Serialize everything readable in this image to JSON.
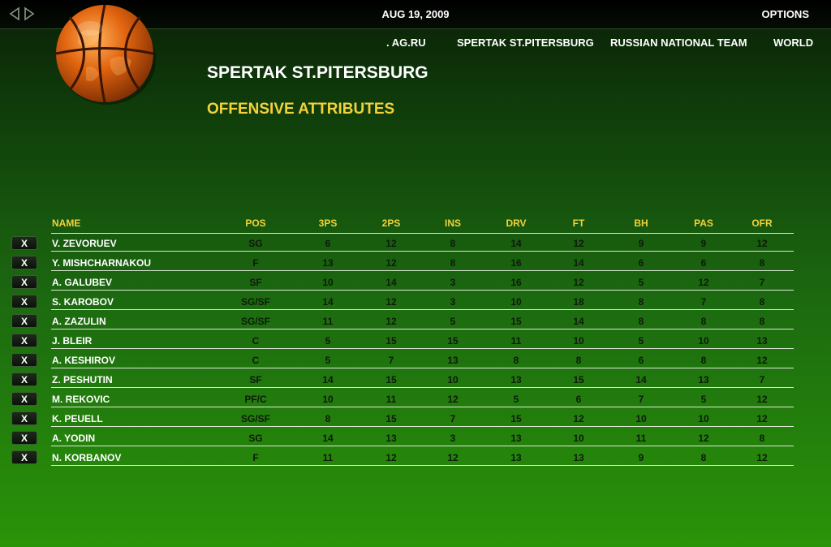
{
  "topbar": {
    "date": "AUG 19, 2009",
    "options_label": "OPTIONS"
  },
  "menu": {
    "items": [
      ". AG.RU",
      "SPERTAK ST.PITERSBURG",
      "RUSSIAN NATIONAL TEAM",
      "WORLD"
    ]
  },
  "team_title": "SPERTAK ST.PITERSBURG",
  "section_title": "OFFENSIVE ATTRIBUTES",
  "colors": {
    "accent_yellow": "#f2d23a",
    "row_value_text": "#0f1a0c",
    "ball_orange": "#e2650f"
  },
  "table": {
    "headers": [
      "NAME",
      "POS",
      "3PS",
      "2PS",
      "INS",
      "DRV",
      "FT",
      "BH",
      "PAS",
      "OFR"
    ],
    "remove_label": "X",
    "rows": [
      [
        "V. ZEVORUEV",
        "SG",
        "6",
        "12",
        "8",
        "14",
        "12",
        "9",
        "9",
        "12"
      ],
      [
        "Y. MISHCHARNAKOU",
        "F",
        "13",
        "12",
        "8",
        "16",
        "14",
        "6",
        "6",
        "8"
      ],
      [
        "A. GALUBEV",
        "SF",
        "10",
        "14",
        "3",
        "16",
        "12",
        "5",
        "12",
        "7"
      ],
      [
        "S. KAROBOV",
        "SG/SF",
        "14",
        "12",
        "3",
        "10",
        "18",
        "8",
        "7",
        "8"
      ],
      [
        "A. ZAZULIN",
        "SG/SF",
        "11",
        "12",
        "5",
        "15",
        "14",
        "8",
        "8",
        "8"
      ],
      [
        "J. BLEIR",
        "C",
        "5",
        "15",
        "15",
        "11",
        "10",
        "5",
        "10",
        "13"
      ],
      [
        "A. KESHIROV",
        "C",
        "5",
        "7",
        "13",
        "8",
        "8",
        "6",
        "8",
        "12"
      ],
      [
        "Z. PESHUTIN",
        "SF",
        "14",
        "15",
        "10",
        "13",
        "15",
        "14",
        "13",
        "7"
      ],
      [
        "M. REKOVIC",
        "PF/C",
        "10",
        "11",
        "12",
        "5",
        "6",
        "7",
        "5",
        "12"
      ],
      [
        "K. PEUELL",
        "SG/SF",
        "8",
        "15",
        "7",
        "15",
        "12",
        "10",
        "10",
        "12"
      ],
      [
        "A. YODIN",
        "SG",
        "14",
        "13",
        "3",
        "13",
        "10",
        "11",
        "12",
        "8"
      ],
      [
        "N. KORBANOV",
        "F",
        "11",
        "12",
        "12",
        "13",
        "13",
        "9",
        "8",
        "12"
      ]
    ]
  }
}
